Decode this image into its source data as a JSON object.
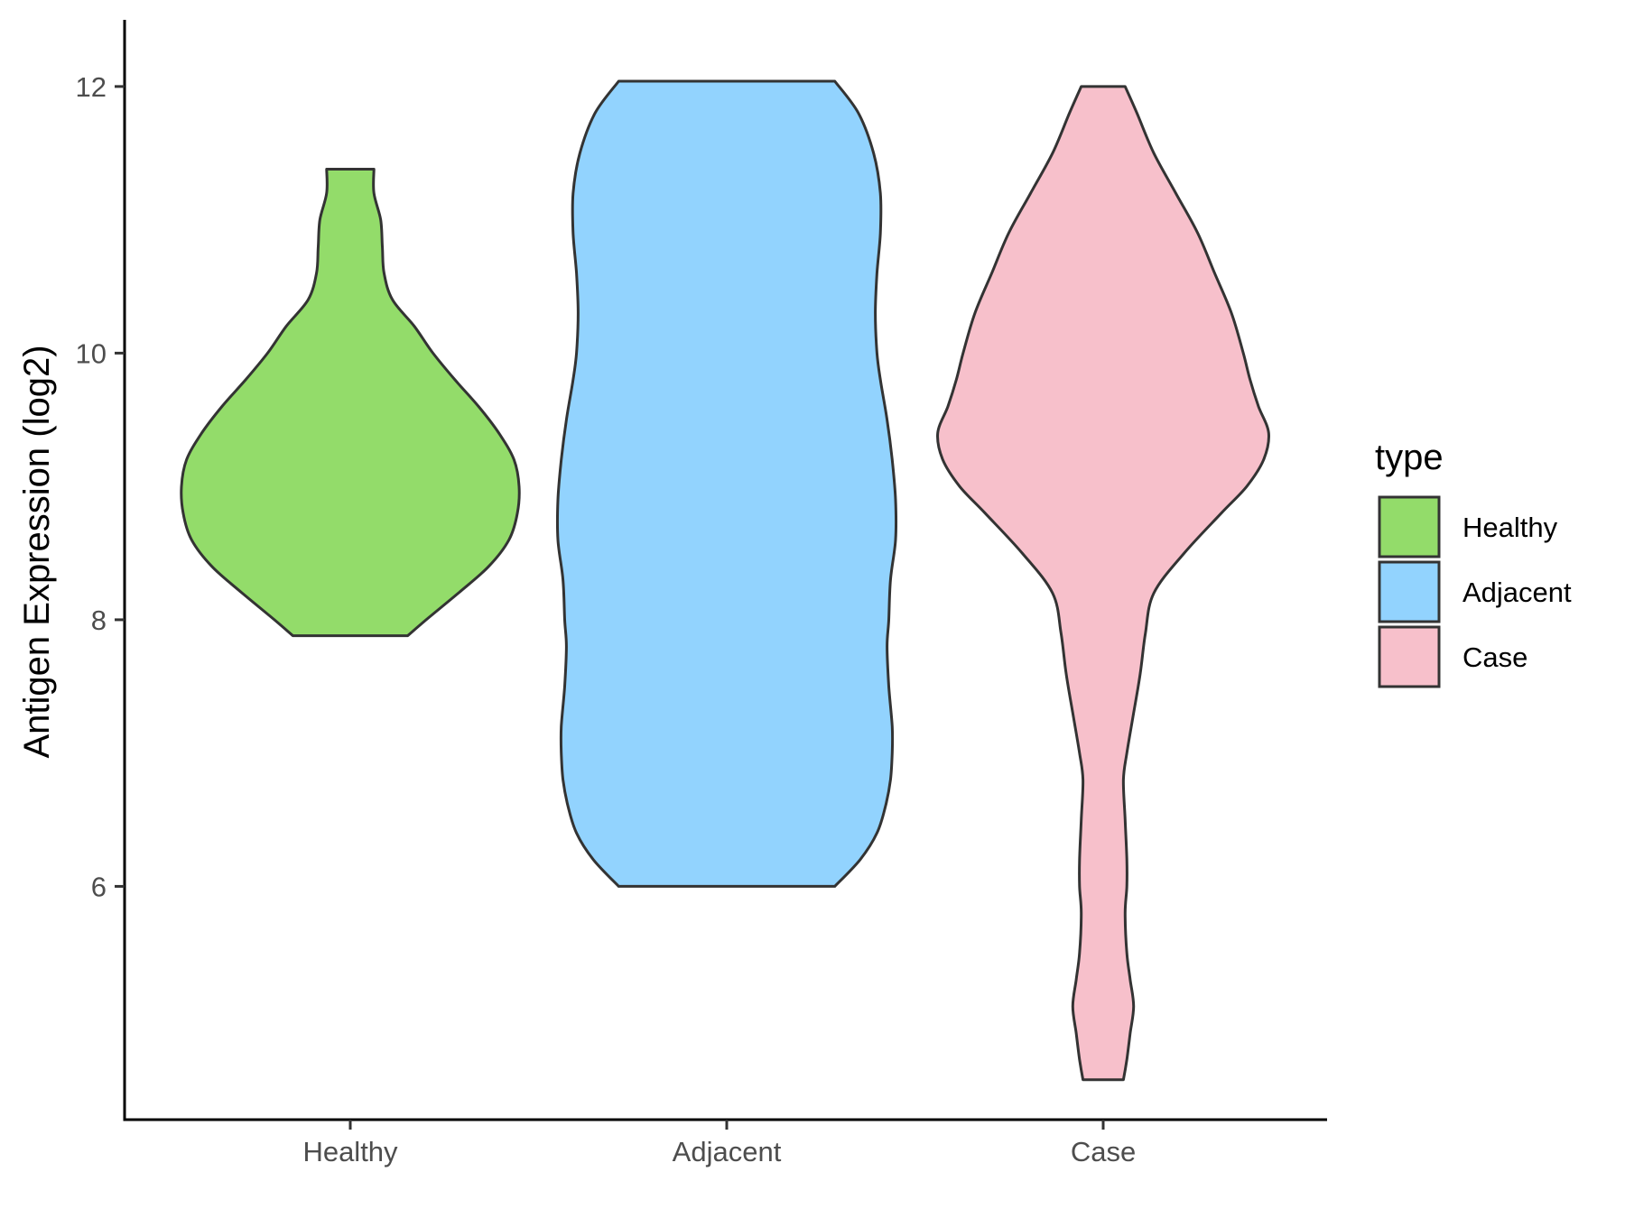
{
  "chart_data": {
    "type": "violin",
    "title": "",
    "xlabel": "",
    "ylabel": "Antigen Expression (log2)",
    "ylim": [
      4.25,
      12.5
    ],
    "yticks": [
      6,
      8,
      10,
      12
    ],
    "categories": [
      "Healthy",
      "Adjacent",
      "Case"
    ],
    "grid": false,
    "legend": {
      "title": "type",
      "position": "right",
      "entries": [
        {
          "label": "Healthy",
          "color": "#93DC6A"
        },
        {
          "label": "Adjacent",
          "color": "#92D3FE"
        },
        {
          "label": "Case",
          "color": "#F7C0CB"
        }
      ]
    },
    "series": [
      {
        "category": "Healthy",
        "color": "#93DC6A",
        "min": 7.88,
        "max": 11.38,
        "density_profile": [
          [
            7.88,
            0.34
          ],
          [
            8.0,
            0.45
          ],
          [
            8.2,
            0.64
          ],
          [
            8.4,
            0.82
          ],
          [
            8.6,
            0.94
          ],
          [
            8.8,
            0.99
          ],
          [
            9.0,
            1.0
          ],
          [
            9.2,
            0.97
          ],
          [
            9.4,
            0.88
          ],
          [
            9.6,
            0.76
          ],
          [
            9.8,
            0.62
          ],
          [
            10.0,
            0.49
          ],
          [
            10.2,
            0.38
          ],
          [
            10.4,
            0.25
          ],
          [
            10.6,
            0.2
          ],
          [
            10.8,
            0.19
          ],
          [
            11.0,
            0.18
          ],
          [
            11.2,
            0.14
          ],
          [
            11.38,
            0.14
          ]
        ]
      },
      {
        "category": "Adjacent",
        "color": "#92D3FE",
        "min": 6.0,
        "max": 12.04,
        "density_profile": [
          [
            6.0,
            0.64
          ],
          [
            6.2,
            0.79
          ],
          [
            6.4,
            0.89
          ],
          [
            6.6,
            0.94
          ],
          [
            6.8,
            0.97
          ],
          [
            7.0,
            0.98
          ],
          [
            7.2,
            0.98
          ],
          [
            7.5,
            0.96
          ],
          [
            7.8,
            0.95
          ],
          [
            8.0,
            0.96
          ],
          [
            8.3,
            0.97
          ],
          [
            8.6,
            1.0
          ],
          [
            8.9,
            1.0
          ],
          [
            9.2,
            0.98
          ],
          [
            9.5,
            0.95
          ],
          [
            9.8,
            0.91
          ],
          [
            10.0,
            0.89
          ],
          [
            10.3,
            0.88
          ],
          [
            10.6,
            0.89
          ],
          [
            10.9,
            0.91
          ],
          [
            11.2,
            0.91
          ],
          [
            11.5,
            0.87
          ],
          [
            11.8,
            0.78
          ],
          [
            12.04,
            0.64
          ]
        ]
      },
      {
        "category": "Case",
        "color": "#F7C0CB",
        "min": 4.55,
        "max": 12.0,
        "density_profile": [
          [
            4.55,
            0.12
          ],
          [
            4.7,
            0.14
          ],
          [
            4.9,
            0.16
          ],
          [
            5.1,
            0.18
          ],
          [
            5.3,
            0.16
          ],
          [
            5.5,
            0.14
          ],
          [
            5.8,
            0.13
          ],
          [
            6.0,
            0.14
          ],
          [
            6.2,
            0.14
          ],
          [
            6.5,
            0.13
          ],
          [
            6.8,
            0.12
          ],
          [
            7.0,
            0.14
          ],
          [
            7.3,
            0.18
          ],
          [
            7.6,
            0.22
          ],
          [
            7.9,
            0.25
          ],
          [
            8.2,
            0.3
          ],
          [
            8.5,
            0.48
          ],
          [
            8.8,
            0.7
          ],
          [
            9.0,
            0.85
          ],
          [
            9.2,
            0.95
          ],
          [
            9.4,
            0.98
          ],
          [
            9.6,
            0.92
          ],
          [
            9.8,
            0.87
          ],
          [
            10.0,
            0.83
          ],
          [
            10.3,
            0.76
          ],
          [
            10.6,
            0.66
          ],
          [
            10.9,
            0.56
          ],
          [
            11.2,
            0.43
          ],
          [
            11.5,
            0.3
          ],
          [
            11.8,
            0.2
          ],
          [
            12.0,
            0.13
          ]
        ]
      }
    ]
  }
}
